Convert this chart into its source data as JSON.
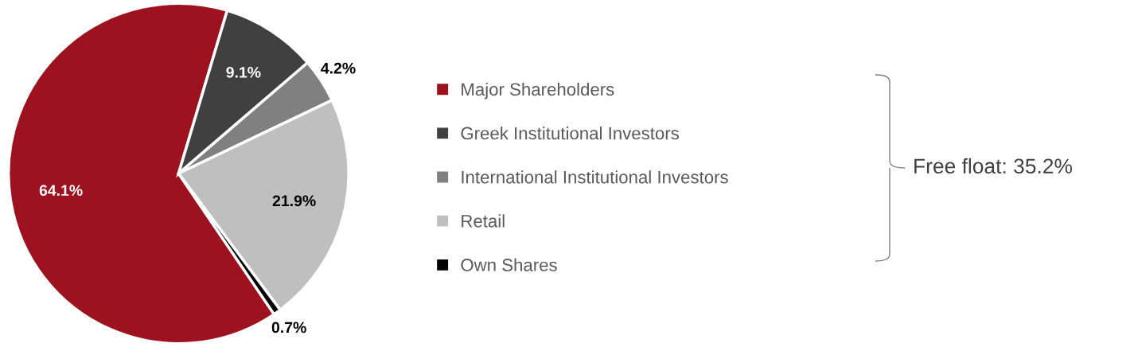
{
  "chart_data": {
    "type": "pie",
    "categories": [
      "Major Shareholders",
      "Greek Institutional Investors",
      "International Institutional Investors",
      "Retail",
      "Own Shares"
    ],
    "values": [
      64.1,
      9.1,
      4.2,
      21.9,
      0.7
    ],
    "colors": [
      "#9e111e",
      "#404040",
      "#808080",
      "#bfbfbf",
      "#000000"
    ],
    "value_labels": [
      "64.1%",
      "9.1%",
      "4.2%",
      "21.9%",
      "0.7%"
    ],
    "legend": "right",
    "annotations": [
      "Free float: 35.2%"
    ]
  }
}
